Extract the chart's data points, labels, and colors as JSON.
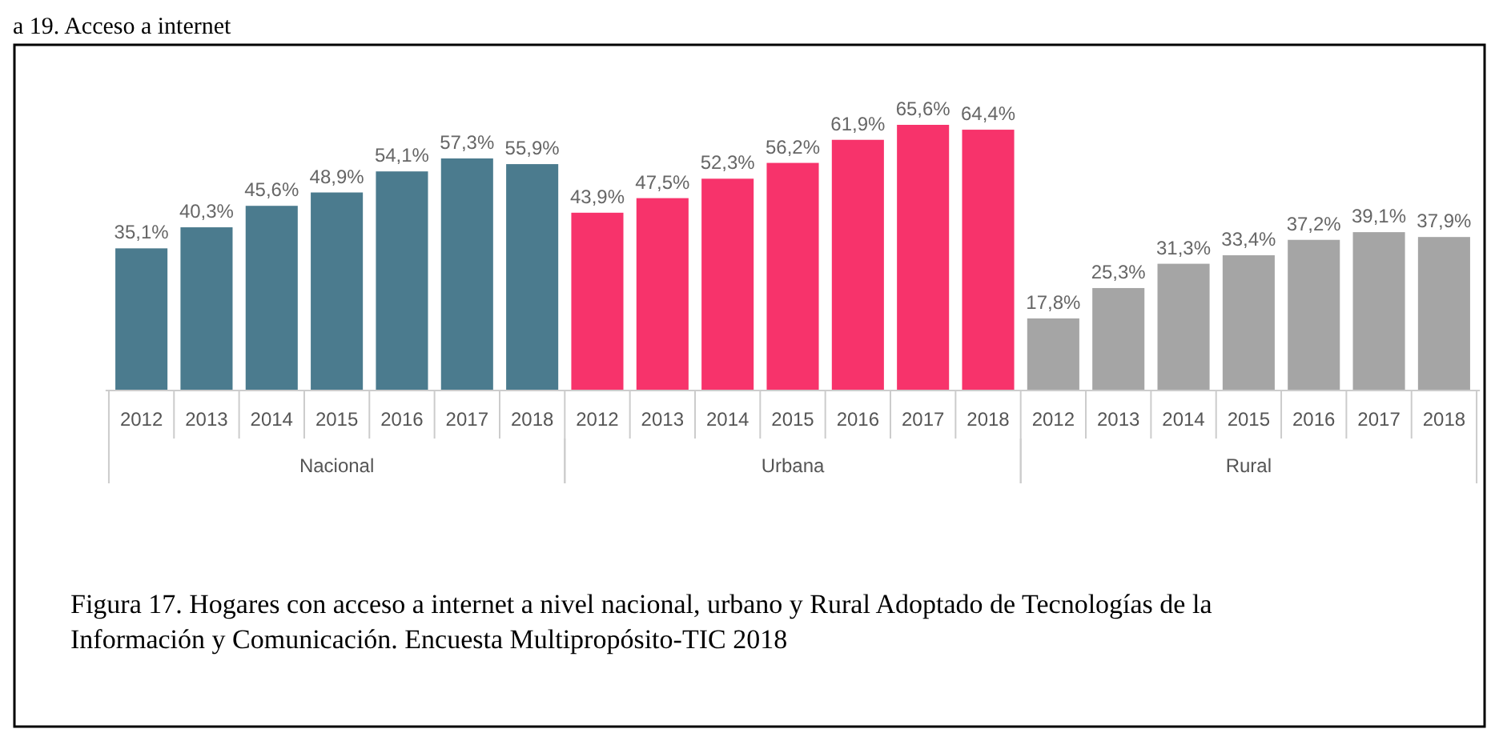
{
  "chart_data": {
    "type": "bar",
    "title": "a 19. Acceso a internet",
    "categories": [
      "2012",
      "2013",
      "2014",
      "2015",
      "2016",
      "2017",
      "2018",
      "2012",
      "2013",
      "2014",
      "2015",
      "2016",
      "2017",
      "2018",
      "2012",
      "2013",
      "2014",
      "2015",
      "2016",
      "2017",
      "2018"
    ],
    "series": [
      {
        "name": "Nacional",
        "color": "#4b7b8e",
        "values": [
          35.1,
          40.3,
          45.6,
          48.9,
          54.1,
          57.3,
          55.9,
          null,
          null,
          null,
          null,
          null,
          null,
          null,
          null,
          null,
          null,
          null,
          null,
          null,
          null
        ],
        "value_labels": [
          "35,1%",
          "40,3%",
          "45,6%",
          "48,9%",
          "54,1%",
          "57,3%",
          "55,9%",
          null,
          null,
          null,
          null,
          null,
          null,
          null,
          null,
          null,
          null,
          null,
          null,
          null,
          null
        ]
      },
      {
        "name": "Urbana",
        "color": "#f7336b",
        "values": [
          null,
          null,
          null,
          null,
          null,
          null,
          null,
          43.9,
          47.5,
          52.3,
          56.2,
          61.9,
          65.6,
          64.4,
          null,
          null,
          null,
          null,
          null,
          null,
          null
        ],
        "value_labels": [
          null,
          null,
          null,
          null,
          null,
          null,
          null,
          "43,9%",
          "47,5%",
          "52,3%",
          "56,2%",
          "61,9%",
          "65,6%",
          "64,4%",
          null,
          null,
          null,
          null,
          null,
          null,
          null
        ]
      },
      {
        "name": "Rural",
        "color": "#a5a5a5",
        "values": [
          null,
          null,
          null,
          null,
          null,
          null,
          null,
          null,
          null,
          null,
          null,
          null,
          null,
          null,
          17.8,
          25.3,
          31.3,
          33.4,
          37.2,
          39.1,
          37.9
        ],
        "value_labels": [
          null,
          null,
          null,
          null,
          null,
          null,
          null,
          null,
          null,
          null,
          null,
          null,
          null,
          null,
          "17,8%",
          "25,3%",
          "31,3%",
          "33,4%",
          "37,2%",
          "39,1%",
          "37,9%"
        ]
      }
    ],
    "annotations": [
      "Figura 17. Hogares con acceso a internet a nivel nacional, urbano y Rural Adoptado de Tecnologías de la Información y Comunicación. Encuesta Multipropósito-TIC 2018"
    ]
  }
}
